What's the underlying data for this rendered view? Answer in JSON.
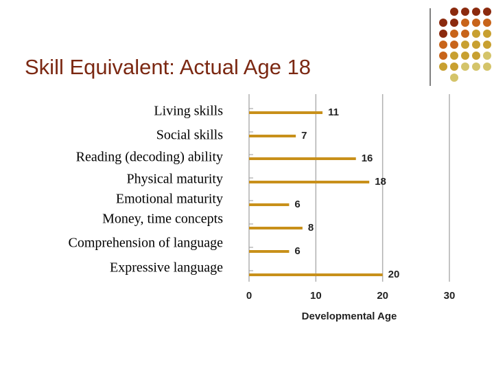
{
  "chart_data": {
    "type": "bar",
    "orientation": "horizontal",
    "title": "Skill Equivalent: Actual Age 18",
    "categories": [
      "Living skills",
      "Social skills",
      "Reading (decoding) ability",
      "Physical maturity",
      "Emotional maturity",
      "Money, time concepts",
      "Comprehension of language",
      "Expressive language"
    ],
    "values": [
      11,
      7,
      16,
      18,
      6,
      8,
      6,
      20
    ],
    "color": "#c8901a",
    "xlim": [
      0,
      30
    ],
    "xticks": [
      0,
      10,
      20,
      30
    ],
    "xlabel": "Developmental Age",
    "grid": true
  }
}
